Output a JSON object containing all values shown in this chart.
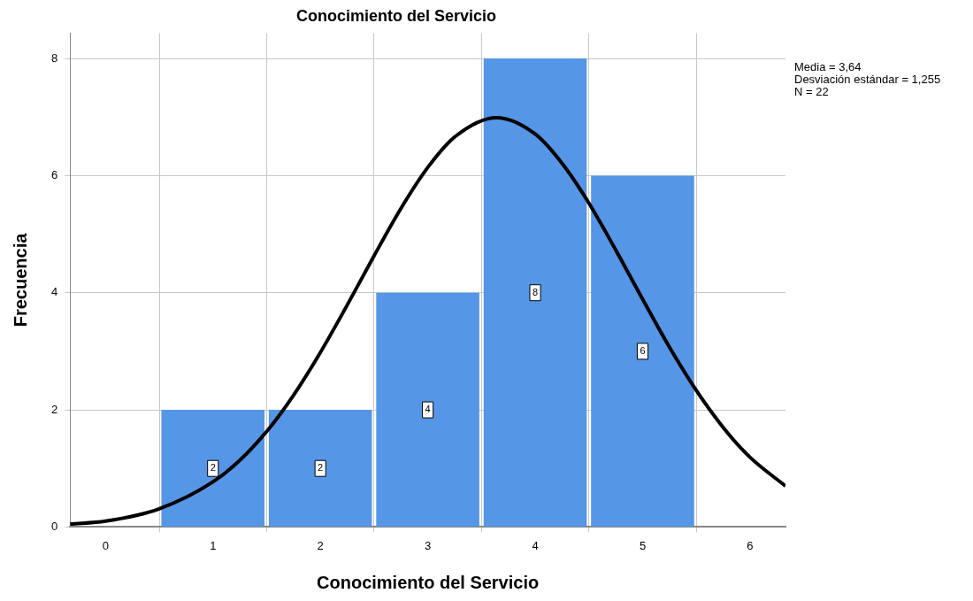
{
  "chart_data": {
    "type": "histogram",
    "title": "Conocimiento del Servicio",
    "xlabel": "Conocimiento del Servicio",
    "ylabel": "Frecuencia",
    "bins": [
      0.5,
      1.5,
      2.5,
      3.5,
      4.5,
      5.5
    ],
    "values": [
      2,
      2,
      4,
      8,
      6
    ],
    "color": "#5596e6",
    "value_labels": [
      "2",
      "2",
      "4",
      "8",
      "6"
    ],
    "series": [
      {
        "type": "line",
        "color": "#000000",
        "x": [
          -0.33,
          0,
          0.5,
          1,
          1.25,
          1.5,
          1.75,
          2,
          2.25,
          2.5,
          2.75,
          3,
          3.25,
          3.64,
          4,
          4.25,
          4.5,
          4.75,
          5,
          5.25,
          5.5,
          5.75,
          6,
          6.33
        ],
        "values": [
          0.05,
          0.1,
          0.31,
          0.77,
          1.14,
          1.63,
          2.25,
          2.98,
          3.79,
          4.63,
          5.44,
          6.14,
          6.66,
          6.99,
          6.71,
          6.21,
          5.53,
          4.73,
          3.89,
          3.07,
          2.33,
          1.7,
          1.19,
          0.7
        ]
      }
    ],
    "xlim": [
      -0.33,
      6.33
    ],
    "xticks": [
      0,
      1,
      2,
      3,
      4,
      5,
      6
    ],
    "ylim": [
      0,
      8.43
    ],
    "yticks": [
      0,
      2,
      4,
      6,
      8
    ],
    "grid": true,
    "legend": false,
    "annotations": [
      "Media = 3,64",
      "Desviación estándar = 1,255",
      "N = 22"
    ]
  }
}
